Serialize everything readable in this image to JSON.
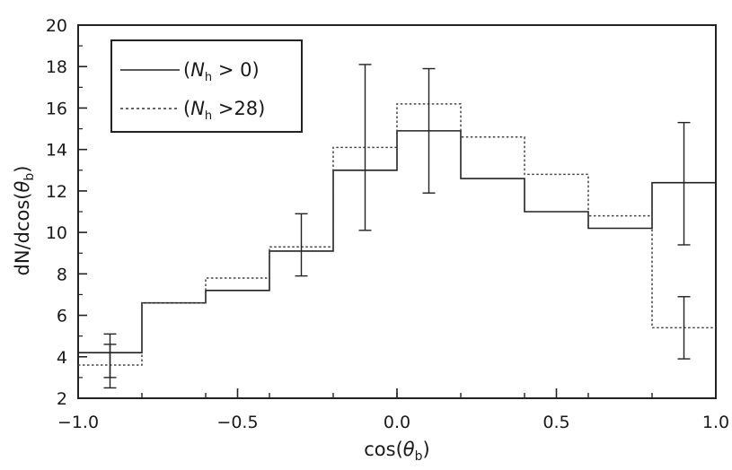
{
  "chart_data": {
    "type": "histogram",
    "xlabel": "cos(θb)",
    "ylabel": "dN/dcos(θb)",
    "xlim": [
      -1.0,
      1.0
    ],
    "ylim": [
      2,
      20
    ],
    "x_ticks": [
      -1.0,
      -0.5,
      0.0,
      0.5,
      1.0
    ],
    "x_tick_labels": [
      "−1.0",
      "−0.5",
      "0.0",
      "0.5",
      "1.0"
    ],
    "y_ticks": [
      2,
      4,
      6,
      8,
      10,
      12,
      14,
      16,
      18,
      20
    ],
    "y_tick_labels": [
      "2",
      "4",
      "6",
      "8",
      "10",
      "12",
      "14",
      "16",
      "18",
      "20"
    ],
    "bin_edges": [
      -1.0,
      -0.8,
      -0.6,
      -0.4,
      -0.2,
      0.0,
      0.2,
      0.4,
      0.6,
      0.8,
      1.0
    ],
    "legend_position": "top-left",
    "series": [
      {
        "name": "(Nh > 0)",
        "style": "solid",
        "values": [
          4.2,
          6.6,
          7.2,
          9.1,
          13.0,
          14.9,
          12.6,
          11.0,
          10.2,
          12.4
        ],
        "error_bars": [
          {
            "x": -0.9,
            "low": 3.0,
            "high": 4.6
          },
          {
            "x": -0.1,
            "low": 10.1,
            "high": 18.1
          },
          {
            "x": 0.1,
            "low": 11.9,
            "high": 17.9
          },
          {
            "x": 0.9,
            "low": 9.4,
            "high": 15.3
          }
        ]
      },
      {
        "name": "(Nh >28)",
        "style": "dotted",
        "values": [
          3.6,
          6.6,
          7.8,
          9.3,
          14.1,
          16.2,
          14.6,
          12.8,
          10.8,
          5.4
        ],
        "error_bars": [
          {
            "x": -0.9,
            "low": 2.5,
            "high": 5.1
          },
          {
            "x": -0.3,
            "low": 7.9,
            "high": 10.9
          },
          {
            "x": 0.9,
            "low": 3.9,
            "high": 6.9
          }
        ]
      }
    ]
  },
  "legend": {
    "solid": {
      "prefix": "(",
      "symbol": "N",
      "subscript": "h",
      "relation": " > 0)"
    },
    "dotted": {
      "prefix": "(",
      "symbol": "N",
      "subscript": "h",
      "relation": " >28)"
    }
  },
  "axis_titles": {
    "x": {
      "prefix": "cos(",
      "symbol": "θ",
      "subscript": "b",
      "suffix": ")"
    },
    "y": {
      "prefix": "dN/dcos(",
      "symbol": "θ",
      "subscript": "b",
      "suffix": ")"
    }
  }
}
